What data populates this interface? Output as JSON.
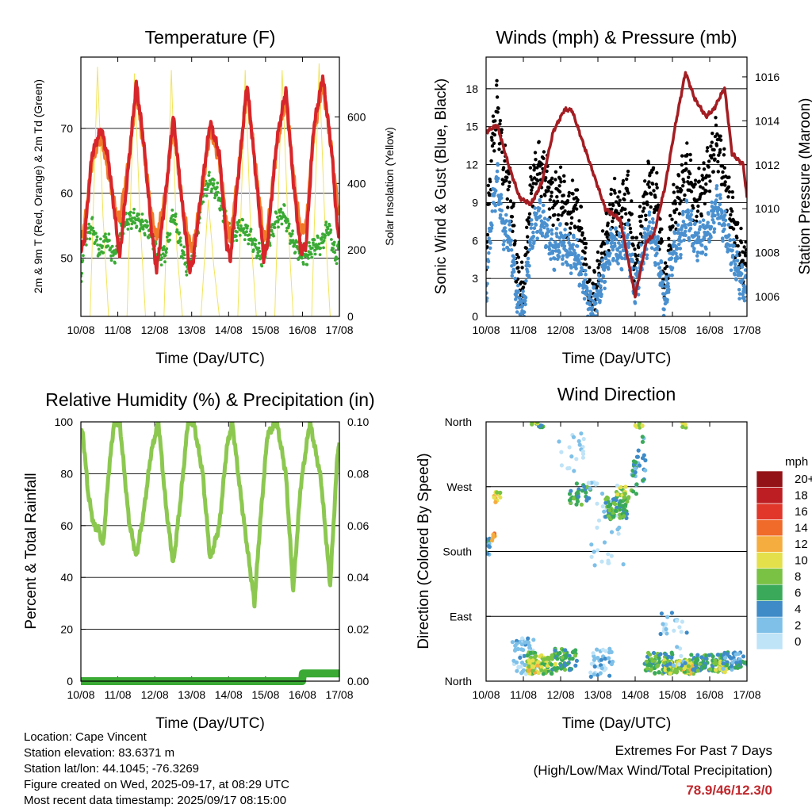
{
  "x_ticks": [
    "10/08",
    "11/08",
    "12/08",
    "13/08",
    "14/08",
    "15/08",
    "16/08",
    "17/08"
  ],
  "chart_data": [
    {
      "type": "line",
      "title": "Temperature (F)",
      "xlabel": "Time (Day/UTC)",
      "ylabel": "2m & 9m T (Red, Orange) & 2m Td (Green)",
      "ylabel_right": "Solar Insolation (Yellow)",
      "ylim": [
        41,
        81
      ],
      "yticks": [
        50,
        60,
        70
      ],
      "ylim_right": [
        0,
        780
      ],
      "yticks_right": [
        0,
        200,
        400,
        600
      ],
      "grid": true,
      "series": [
        {
          "kind": "temp2m",
          "color": "#d7262b",
          "x": [
            0,
            0.1,
            0.3,
            0.55,
            0.75,
            0.95,
            1.05,
            1.3,
            1.5,
            1.7,
            1.9,
            2.05,
            2.3,
            2.5,
            2.75,
            2.95,
            3.05,
            3.3,
            3.5,
            3.75,
            3.95,
            4.05,
            4.3,
            4.5,
            4.75,
            4.95,
            5.05,
            5.3,
            5.55,
            5.75,
            5.95,
            6.1,
            6.3,
            6.55,
            6.8,
            6.95,
            7
          ],
          "values": [
            51,
            53,
            66,
            70,
            65,
            55,
            50,
            65,
            77,
            68,
            55,
            48,
            60,
            72,
            58,
            48,
            50,
            62,
            71,
            66,
            52,
            50,
            65,
            77,
            62,
            50,
            52,
            68,
            76,
            62,
            51,
            52,
            70,
            78,
            66,
            54,
            54
          ]
        },
        {
          "kind": "temp9m",
          "color": "#f07a2a",
          "x": [
            0,
            0.1,
            0.3,
            0.55,
            0.75,
            0.95,
            1.05,
            1.3,
            1.5,
            1.7,
            1.9,
            2.05,
            2.3,
            2.5,
            2.75,
            2.95,
            3.05,
            3.3,
            3.5,
            3.75,
            3.95,
            4.05,
            4.3,
            4.5,
            4.75,
            4.95,
            5.05,
            5.3,
            5.55,
            5.75,
            5.95,
            6.1,
            6.3,
            6.55,
            6.8,
            6.95,
            7
          ],
          "values": [
            53,
            55,
            65,
            69,
            63,
            57,
            56,
            65,
            76,
            67,
            57,
            53,
            60,
            71,
            58,
            52,
            52,
            61,
            70,
            65,
            55,
            53,
            65,
            76,
            63,
            53,
            54,
            67,
            75,
            63,
            54,
            55,
            69,
            77,
            66,
            58,
            57
          ]
        },
        {
          "kind": "dewpoint",
          "color": "#3aaa35",
          "x": [
            0,
            0.1,
            0.3,
            0.5,
            0.7,
            0.9,
            1.1,
            1.3,
            1.5,
            1.7,
            1.9,
            2.1,
            2.3,
            2.5,
            2.7,
            2.9,
            3.1,
            3.3,
            3.5,
            3.7,
            3.9,
            4.1,
            4.3,
            4.5,
            4.7,
            4.9,
            5.1,
            5.3,
            5.5,
            5.7,
            5.9,
            6.1,
            6.3,
            6.5,
            6.7,
            6.9,
            7
          ],
          "values": [
            47,
            53,
            55,
            51,
            53,
            50,
            55,
            56,
            56,
            55,
            54,
            50,
            51,
            57,
            52,
            48,
            52,
            60,
            62,
            60,
            56,
            53,
            55,
            54,
            52,
            50,
            53,
            56,
            57,
            53,
            51,
            50,
            52,
            52,
            55,
            50,
            52
          ]
        },
        {
          "kind": "solar",
          "color": "#f2e45a",
          "x": [
            0,
            0.25,
            0.45,
            0.6,
            0.75,
            1,
            1.25,
            1.45,
            1.6,
            1.75,
            2,
            2.25,
            2.45,
            2.6,
            2.75,
            3,
            3.25,
            3.45,
            3.6,
            3.75,
            4,
            4.25,
            4.45,
            4.6,
            4.75,
            5,
            5.25,
            5.45,
            5.6,
            5.75,
            6,
            6.25,
            6.45,
            6.6,
            6.75,
            7
          ],
          "values": [
            0,
            0,
            750,
            300,
            0,
            0,
            0,
            730,
            300,
            0,
            0,
            0,
            740,
            200,
            0,
            0,
            0,
            350,
            150,
            0,
            0,
            0,
            740,
            250,
            0,
            0,
            0,
            740,
            300,
            0,
            0,
            0,
            760,
            300,
            0,
            0
          ]
        }
      ]
    },
    {
      "type": "scatter",
      "title": "Winds (mph) & Pressure (mb)",
      "xlabel": "Time (Day/UTC)",
      "ylabel": "Sonic Wind & Gust (Blue, Black)",
      "ylabel_right": "Station Pressure (Maroon)",
      "ylim": [
        0,
        20.5
      ],
      "yticks": [
        0,
        3,
        6,
        9,
        12,
        15,
        18
      ],
      "ylim_right": [
        1005.1,
        1016.9
      ],
      "yticks_right": [
        1006,
        1008,
        1010,
        1012,
        1014,
        1016
      ],
      "grid": true,
      "series": [
        {
          "kind": "gust",
          "color": "#000000",
          "x": [
            0,
            0.15,
            0.3,
            0.45,
            0.65,
            0.85,
            1,
            1.2,
            1.4,
            1.6,
            1.8,
            2,
            2.2,
            2.4,
            2.6,
            2.8,
            3,
            3.2,
            3.4,
            3.6,
            3.8,
            4,
            4.2,
            4.4,
            4.6,
            4.8,
            5,
            5.2,
            5.4,
            5.6,
            5.8,
            6,
            6.2,
            6.4,
            6.6,
            6.8,
            7
          ],
          "values": [
            5,
            13,
            17,
            12,
            10,
            3,
            2,
            10,
            12,
            11,
            9,
            10,
            8,
            9,
            6,
            1,
            3,
            6,
            9,
            8,
            10,
            4,
            8,
            11,
            9,
            2,
            8,
            10,
            12,
            9,
            10,
            12,
            14,
            11,
            8,
            5,
            4
          ]
        },
        {
          "kind": "wind",
          "color": "#4a90cf",
          "x": [
            0,
            0.15,
            0.3,
            0.45,
            0.65,
            0.85,
            1,
            1.2,
            1.4,
            1.6,
            1.8,
            2,
            2.2,
            2.4,
            2.6,
            2.8,
            3,
            3.2,
            3.4,
            3.6,
            3.8,
            4,
            4.2,
            4.4,
            4.6,
            4.8,
            5,
            5.2,
            5.4,
            5.6,
            5.8,
            6,
            6.2,
            6.4,
            6.6,
            6.8,
            7
          ],
          "values": [
            2,
            8,
            11,
            7,
            6,
            1,
            0.5,
            6,
            8,
            7,
            5,
            6,
            5,
            5,
            3,
            0.5,
            1.5,
            4,
            6,
            5,
            6,
            2,
            5,
            7,
            5,
            1,
            5,
            6,
            8,
            6,
            6,
            7,
            9,
            7,
            5,
            3,
            2
          ]
        },
        {
          "kind": "pressure",
          "color": "#a31d22",
          "x": [
            0,
            0.3,
            0.6,
            0.9,
            1.2,
            1.5,
            1.8,
            2.1,
            2.3,
            2.6,
            2.9,
            3.2,
            3.6,
            4,
            4.3,
            4.5,
            4.8,
            5.1,
            5.35,
            5.6,
            5.9,
            6.1,
            6.4,
            6.6,
            6.9,
            7
          ],
          "values": [
            1013.5,
            1013.8,
            1012,
            1010.5,
            1010.2,
            1011.2,
            1013.5,
            1014.5,
            1014.5,
            1013,
            1011.5,
            1010,
            1009.5,
            1006,
            1008.5,
            1008.8,
            1011,
            1014,
            1016.2,
            1015,
            1014.2,
            1014.5,
            1015.5,
            1012.5,
            1012,
            1010.5
          ]
        }
      ]
    },
    {
      "type": "line",
      "title": "Relative Humidity (%) & Precipitation (in)",
      "xlabel": "Time (Day/UTC)",
      "ylabel": "Percent & Total Rainfall",
      "ylim": [
        0,
        100
      ],
      "yticks": [
        0,
        20,
        40,
        60,
        80,
        100
      ],
      "ylim_right": [
        0,
        0.1
      ],
      "yticks_right": [
        "0.00",
        "0.02",
        "0.04",
        "0.06",
        "0.08",
        "0.10"
      ],
      "grid": true,
      "series": [
        {
          "kind": "rh",
          "color": "#8cc850",
          "x": [
            0,
            0.05,
            0.2,
            0.35,
            0.5,
            0.6,
            0.75,
            0.9,
            1.05,
            1.3,
            1.5,
            1.7,
            1.9,
            2.1,
            2.3,
            2.5,
            2.7,
            2.9,
            3.05,
            3.3,
            3.5,
            3.75,
            3.95,
            4.1,
            4.3,
            4.5,
            4.7,
            4.85,
            5.05,
            5.3,
            5.55,
            5.75,
            5.95,
            6.2,
            6.5,
            6.75,
            6.95,
            7
          ],
          "values": [
            95,
            96,
            72,
            60,
            58,
            52,
            80,
            100,
            100,
            62,
            48,
            65,
            88,
            100,
            68,
            45,
            70,
            100,
            100,
            80,
            47,
            60,
            90,
            100,
            75,
            52,
            30,
            60,
            95,
            100,
            80,
            35,
            75,
            100,
            78,
            37,
            88,
            92
          ]
        },
        {
          "kind": "precip",
          "color": "#3aaa35",
          "x": [
            0,
            5.99,
            6.01,
            7
          ],
          "values": [
            0,
            0,
            0.003,
            0.003
          ]
        }
      ]
    },
    {
      "type": "scatter",
      "title": "Wind Direction",
      "xlabel": "Time (Day/UTC)",
      "ylabel": "Direction (Colored By Speed)",
      "yticks": [
        "North",
        "East",
        "South",
        "West",
        "North"
      ],
      "legend_title": "mph",
      "legend_levels": [
        "0",
        "2",
        "4",
        "6",
        "8",
        "10",
        "12",
        "14",
        "16",
        "18",
        "20+"
      ],
      "legend_colors": [
        "#bfe3f7",
        "#7ec0e8",
        "#3e8bc8",
        "#3aaa5a",
        "#79c244",
        "#e4e04c",
        "#f6ad40",
        "#f06a2a",
        "#e0372a",
        "#bd1e24",
        "#931217"
      ],
      "legend_position": "right"
    }
  ],
  "footer": {
    "location": "Location: Cape Vincent",
    "elevation": "Station elevation: 83.6371 m",
    "latlon": "Station lat/lon: 44.1045; -76.3269",
    "created": "Figure created on Wed, 2025-09-17, at 08:29 UTC",
    "recent": "Most recent data timestamp: 2025/09/17 08:15:00"
  },
  "extremes": {
    "line1": "Extremes For Past 7 Days",
    "line2": "(High/Low/Max Wind/Total Precipitation)",
    "value": "78.9/46/12.3/0"
  }
}
